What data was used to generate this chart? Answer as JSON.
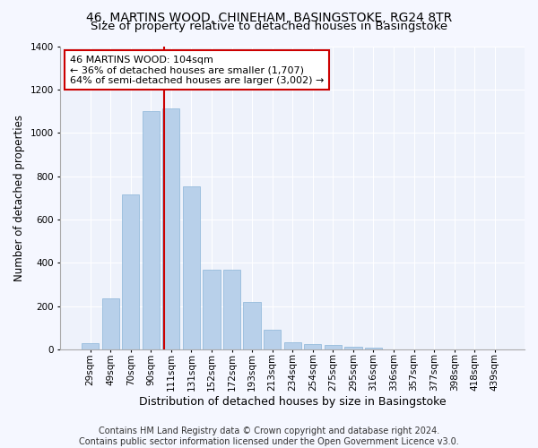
{
  "title1": "46, MARTINS WOOD, CHINEHAM, BASINGSTOKE, RG24 8TR",
  "title2": "Size of property relative to detached houses in Basingstoke",
  "xlabel": "Distribution of detached houses by size in Basingstoke",
  "ylabel": "Number of detached properties",
  "footer1": "Contains HM Land Registry data © Crown copyright and database right 2024.",
  "footer2": "Contains public sector information licensed under the Open Government Licence v3.0.",
  "bar_labels": [
    "29sqm",
    "49sqm",
    "70sqm",
    "90sqm",
    "111sqm",
    "131sqm",
    "152sqm",
    "172sqm",
    "193sqm",
    "213sqm",
    "234sqm",
    "254sqm",
    "275sqm",
    "295sqm",
    "316sqm",
    "336sqm",
    "357sqm",
    "377sqm",
    "398sqm",
    "418sqm",
    "439sqm"
  ],
  "bar_values": [
    30,
    237,
    714,
    1101,
    1114,
    752,
    370,
    370,
    221,
    91,
    32,
    27,
    20,
    15,
    8,
    0,
    0,
    0,
    0,
    0,
    0
  ],
  "bar_color": "#b8d0ea",
  "bar_edge_color": "#8ab4d8",
  "background_color": "#eef2fb",
  "grid_color": "#ffffff",
  "ylim": [
    0,
    1400
  ],
  "yticks": [
    0,
    200,
    400,
    600,
    800,
    1000,
    1200,
    1400
  ],
  "property_label": "46 MARTINS WOOD: 104sqm",
  "annotation_line1": "← 36% of detached houses are smaller (1,707)",
  "annotation_line2": "64% of semi-detached houses are larger (3,002) →",
  "annotation_box_color": "#ffffff",
  "annotation_box_edge": "#cc0000",
  "vline_color": "#cc0000",
  "title_fontsize": 10,
  "subtitle_fontsize": 9.5,
  "xlabel_fontsize": 9,
  "ylabel_fontsize": 8.5,
  "tick_fontsize": 7.5,
  "annotation_fontsize": 8,
  "footer_fontsize": 7
}
